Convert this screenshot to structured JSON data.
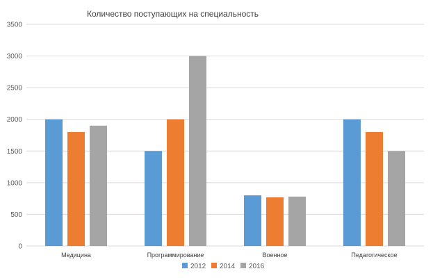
{
  "chart_data": {
    "type": "bar",
    "title": "Количество поступающих на специальность",
    "xlabel": "",
    "ylabel": "",
    "categories": [
      "Медицина",
      "Программирование",
      "Военное",
      "Педагогическое"
    ],
    "series": [
      {
        "name": "2012",
        "color": "#5b9bd5",
        "values": [
          2000,
          1500,
          800,
          2000
        ]
      },
      {
        "name": "2014",
        "color": "#ed7d31",
        "values": [
          1800,
          2000,
          770,
          1800
        ]
      },
      {
        "name": "2016",
        "color": "#a5a5a5",
        "values": [
          1900,
          3000,
          780,
          1500
        ]
      }
    ],
    "ylim": [
      0,
      3500
    ],
    "yticks": [
      0,
      500,
      1000,
      1500,
      2000,
      2500,
      3000,
      3500
    ],
    "grid": true,
    "legend": "bottom"
  }
}
